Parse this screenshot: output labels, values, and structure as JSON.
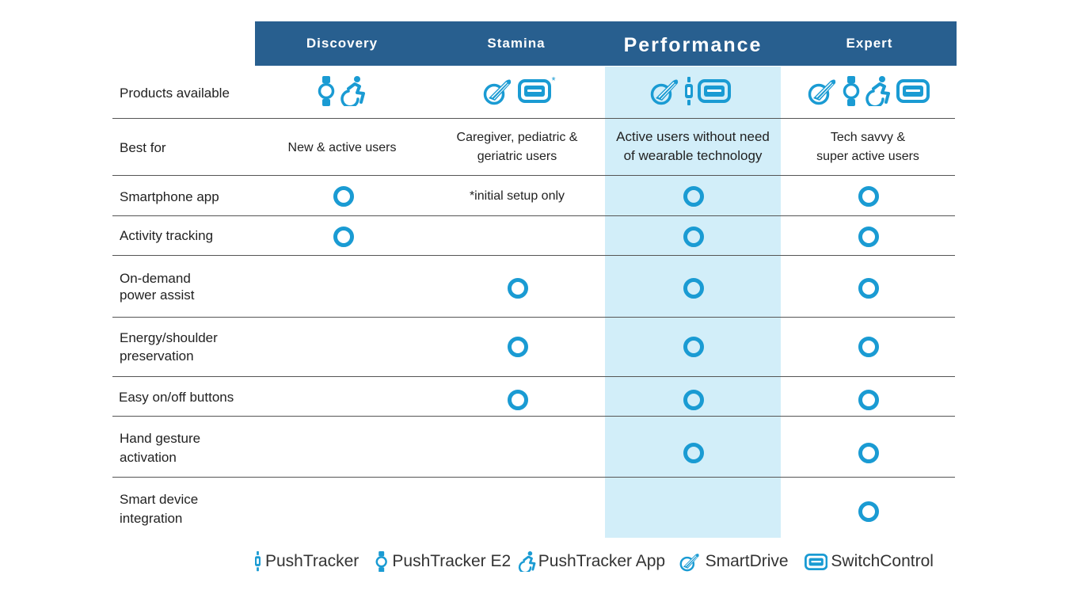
{
  "columns": [
    {
      "key": "discovery",
      "label": "Discovery"
    },
    {
      "key": "stamina",
      "label": "Stamina"
    },
    {
      "key": "performance",
      "label": "Performance"
    },
    {
      "key": "expert",
      "label": "Expert"
    }
  ],
  "rows": {
    "products": "Products available",
    "best_for": "Best for",
    "smartphone": "Smartphone app",
    "activity": "Activity tracking",
    "on_demand": [
      "On-demand",
      "power assist"
    ],
    "energy": [
      "Energy/shoulder",
      "preservation"
    ],
    "buttons": "Easy on/off buttons",
    "gesture": [
      "Hand gesture",
      "activation"
    ],
    "smart_device": [
      "Smart device",
      "integration"
    ]
  },
  "best_for": {
    "discovery": "New & active users",
    "stamina": [
      "Caregiver, pediatric &",
      "geriatric users"
    ],
    "performance": [
      "Active users without need",
      "of wearable technology"
    ],
    "expert": [
      "Tech savvy &",
      "super active users"
    ]
  },
  "notes": {
    "stamina_smartphone": "*initial setup only",
    "asterisk": "*"
  },
  "products": {
    "discovery": [
      "pushtracker-e2",
      "pushtracker-app"
    ],
    "stamina": [
      "smartdrive",
      "switchcontrol"
    ],
    "performance": [
      "smartdrive",
      "pushtracker",
      "switchcontrol"
    ],
    "expert": [
      "smartdrive",
      "pushtracker-e2",
      "pushtracker-app",
      "switchcontrol"
    ]
  },
  "features": {
    "smartphone": {
      "discovery": true,
      "stamina": false,
      "performance": true,
      "expert": true
    },
    "activity": {
      "discovery": true,
      "stamina": false,
      "performance": true,
      "expert": true
    },
    "on_demand": {
      "discovery": false,
      "stamina": true,
      "performance": true,
      "expert": true
    },
    "energy": {
      "discovery": false,
      "stamina": true,
      "performance": true,
      "expert": true
    },
    "buttons": {
      "discovery": false,
      "stamina": true,
      "performance": true,
      "expert": true
    },
    "gesture": {
      "discovery": false,
      "stamina": false,
      "performance": true,
      "expert": true
    },
    "smart_device": {
      "discovery": false,
      "stamina": false,
      "performance": false,
      "expert": true
    }
  },
  "legend": [
    {
      "icon": "pushtracker",
      "label": "PushTracker"
    },
    {
      "icon": "pushtracker-e2",
      "label": "PushTracker E2"
    },
    {
      "icon": "pushtracker-app",
      "label": "PushTracker App"
    },
    {
      "icon": "smartdrive",
      "label": "SmartDrive"
    },
    {
      "icon": "switchcontrol",
      "label": "SwitchControl"
    }
  ],
  "colors": {
    "header": "#285f8f",
    "highlight": "#d2eef9",
    "accent": "#1a9bd3"
  }
}
